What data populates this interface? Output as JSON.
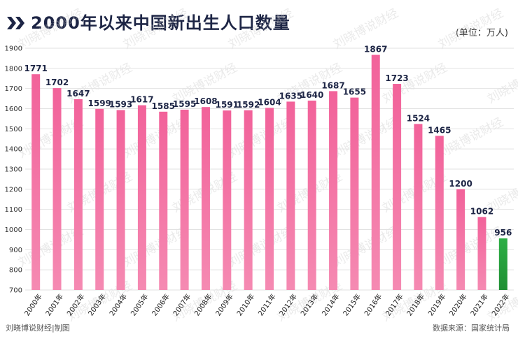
{
  "title": "2000年以来中国新出生人口数量",
  "unit_label": "(单位：万人)",
  "footer": {
    "credit": "刘晓博说财经|制图",
    "source": "数据来源：国家统计局"
  },
  "colors": {
    "bar_pink": "#f26c9c",
    "bar_green": "#27a63c",
    "title_navy": "#1d2545",
    "label_navy": "#1d2545",
    "grid": "#e2e2e2"
  },
  "watermark_text": "刘晓博说财经",
  "chart_data": {
    "type": "bar",
    "title": "2000年以来中国新出生人口数量",
    "ylabel": "",
    "xlabel": "",
    "ylim": [
      700,
      1900
    ],
    "yticks": [
      700,
      800,
      900,
      1000,
      1100,
      1200,
      1300,
      1400,
      1500,
      1600,
      1700,
      1800,
      1900
    ],
    "grid": true,
    "legend": "none",
    "categories": [
      "2000年",
      "2001年",
      "2002年",
      "2003年",
      "2004年",
      "2005年",
      "2006年",
      "2007年",
      "2008年",
      "2009年",
      "2010年",
      "2011年",
      "2012年",
      "2013年",
      "2014年",
      "2015年",
      "2016年",
      "2017年",
      "2018年",
      "2019年",
      "2020年",
      "2021年",
      "2022年"
    ],
    "values": [
      1771,
      1702,
      1647,
      1599,
      1593,
      1617,
      1585,
      1595,
      1608,
      1591,
      1592,
      1604,
      1635,
      1640,
      1687,
      1655,
      1867,
      1723,
      1524,
      1465,
      1200,
      1062,
      956
    ],
    "highlight_category": "2022年"
  }
}
